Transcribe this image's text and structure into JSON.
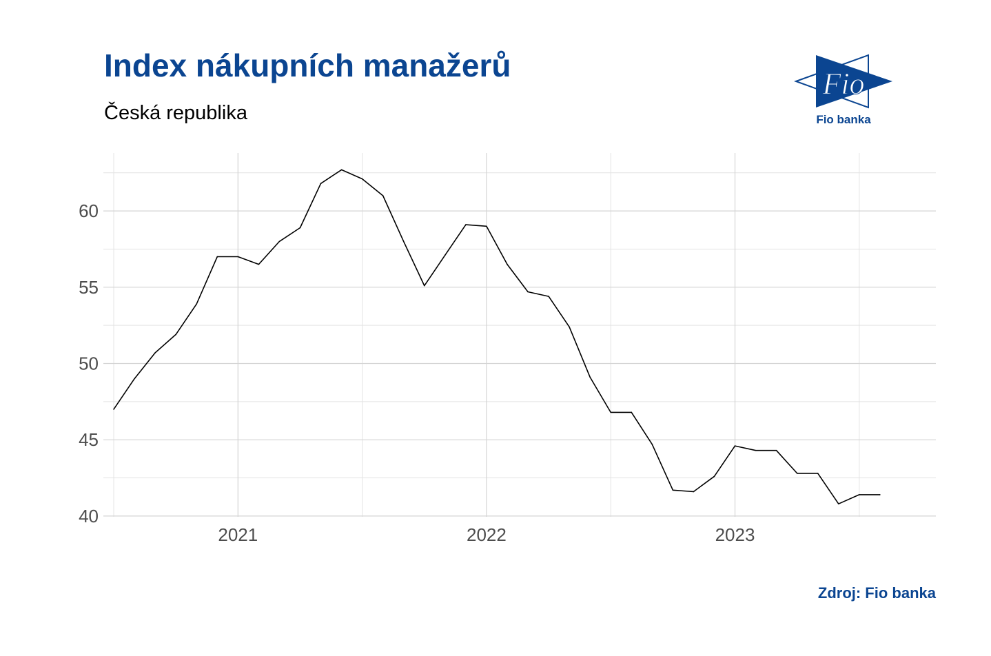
{
  "header": {
    "title": "Index nákupních manažerů",
    "subtitle": "Česká republika"
  },
  "logo": {
    "name": "fio-logo",
    "text": "Fio banka",
    "mark_text": "Fio",
    "color": "#0b4591"
  },
  "source": "Zdroj: Fio banka",
  "chart_data": {
    "type": "line",
    "x_start": "2020-07",
    "x_tick_labels": [
      "2021",
      "2022",
      "2023"
    ],
    "x_ticks": [
      "2021-01",
      "2022-01",
      "2023-01"
    ],
    "xlim": [
      "2020-06",
      "2023-10"
    ],
    "y_tick_labels": [
      "40",
      "45",
      "50",
      "55",
      "60"
    ],
    "y_ticks": [
      40,
      45,
      50,
      55,
      60
    ],
    "ylim": [
      40,
      63
    ],
    "grid": true,
    "line_color": "#000000",
    "series": [
      {
        "name": "",
        "x": [
          "2020-07",
          "2020-08",
          "2020-09",
          "2020-10",
          "2020-11",
          "2020-12",
          "2021-01",
          "2021-02",
          "2021-03",
          "2021-04",
          "2021-05",
          "2021-06",
          "2021-07",
          "2021-08",
          "2021-09",
          "2021-10",
          "2021-11",
          "2021-12",
          "2022-01",
          "2022-02",
          "2022-03",
          "2022-04",
          "2022-05",
          "2022-06",
          "2022-07",
          "2022-08",
          "2022-09",
          "2022-10",
          "2022-11",
          "2022-12",
          "2023-01",
          "2023-02",
          "2023-03",
          "2023-04",
          "2023-05",
          "2023-06",
          "2023-07",
          "2023-08"
        ],
        "values": [
          47.0,
          49.0,
          50.7,
          51.9,
          53.9,
          57.0,
          57.0,
          56.5,
          58.0,
          58.9,
          61.8,
          62.7,
          62.1,
          61.0,
          58.0,
          55.1,
          57.1,
          59.1,
          59.0,
          56.5,
          54.7,
          54.4,
          52.4,
          49.1,
          46.8,
          46.8,
          44.7,
          41.7,
          41.6,
          42.6,
          44.6,
          44.3,
          44.3,
          42.8,
          42.8,
          40.8,
          41.4,
          41.4
        ]
      }
    ]
  }
}
